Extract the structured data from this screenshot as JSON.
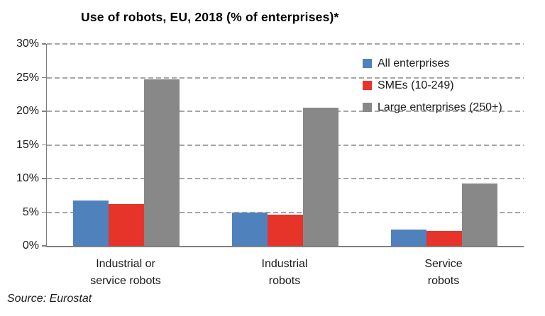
{
  "title": "Use of robots, EU, 2018 (% of enterprises)*",
  "source": "Source: Eurostat",
  "chart_data": {
    "type": "bar",
    "title": "Use of robots, EU, 2018 (% of enterprises)*",
    "categories": [
      [
        "Industrial or",
        "service robots"
      ],
      [
        "Industrial",
        "robots"
      ],
      [
        "Service",
        "robots"
      ]
    ],
    "series": [
      {
        "name": "All enterprises",
        "color": "#4F81BD",
        "values": [
          6.7,
          5.0,
          2.4
        ]
      },
      {
        "name": "SMEs (10-249)",
        "color": "#E6342B",
        "values": [
          6.2,
          4.6,
          2.2
        ]
      },
      {
        "name": "Large enterprises (250+)",
        "color": "#888888",
        "values": [
          24.7,
          20.5,
          9.3
        ]
      }
    ],
    "xlabel": "",
    "ylabel": "",
    "ylim": [
      0,
      30
    ],
    "ytick_step": 5,
    "yticks": [
      "30%",
      "25%",
      "20%",
      "15%",
      "10%",
      "5%",
      "0%"
    ],
    "grid": "horizontal-dashed",
    "legend_position": "top-right",
    "source": "Source: Eurostat"
  }
}
